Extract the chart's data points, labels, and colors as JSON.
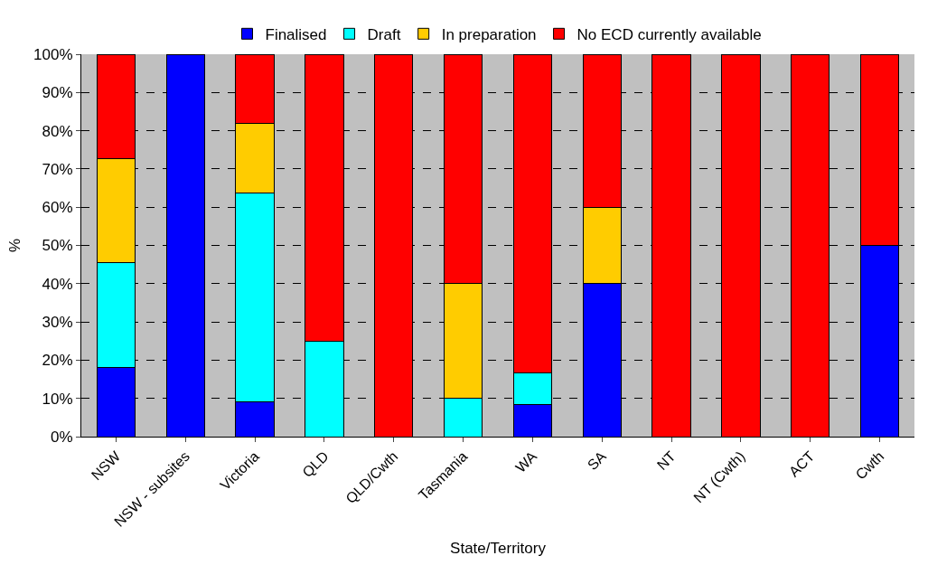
{
  "chart_data": {
    "type": "bar",
    "stacked": true,
    "xlabel": "State/Territory",
    "ylabel": "%",
    "categories": [
      "NSW",
      "NSW - subsites",
      "Victoria",
      "QLD",
      "QLD/Cwth",
      "Tasmania",
      "WA",
      "SA",
      "NT",
      "NT (Cwth)",
      "ACT",
      "Cwth"
    ],
    "series": [
      {
        "name": "Finalised",
        "color": "#0000ff",
        "values": [
          18.2,
          100,
          9.1,
          null,
          null,
          null,
          8.3,
          40,
          null,
          null,
          null,
          50
        ]
      },
      {
        "name": "Draft",
        "color": "#00ffff",
        "values": [
          27.3,
          null,
          54.5,
          25,
          null,
          10,
          8.3,
          null,
          null,
          null,
          null,
          null
        ]
      },
      {
        "name": "In preparation",
        "color": "#ffcc00",
        "values": [
          27.3,
          null,
          18.2,
          null,
          null,
          30,
          null,
          20,
          null,
          null,
          null,
          null
        ]
      },
      {
        "name": "No ECD currently available",
        "color": "#ff0000",
        "values": [
          27.2,
          null,
          18.2,
          75,
          100,
          60,
          83.4,
          40,
          100,
          100,
          100,
          50
        ]
      }
    ],
    "ylim": [
      0,
      100
    ],
    "yticks": [
      {
        "value": 0,
        "label": "0%"
      },
      {
        "value": 10,
        "label": "10%"
      },
      {
        "value": 20,
        "label": "20%"
      },
      {
        "value": 30,
        "label": "30%"
      },
      {
        "value": 40,
        "label": "40%"
      },
      {
        "value": 50,
        "label": "50%"
      },
      {
        "value": 60,
        "label": "60%"
      },
      {
        "value": 70,
        "label": "70%"
      },
      {
        "value": 80,
        "label": "80%"
      },
      {
        "value": 90,
        "label": "90%"
      },
      {
        "value": 100,
        "label": "100%"
      }
    ],
    "grid": "y",
    "legend": "top"
  }
}
